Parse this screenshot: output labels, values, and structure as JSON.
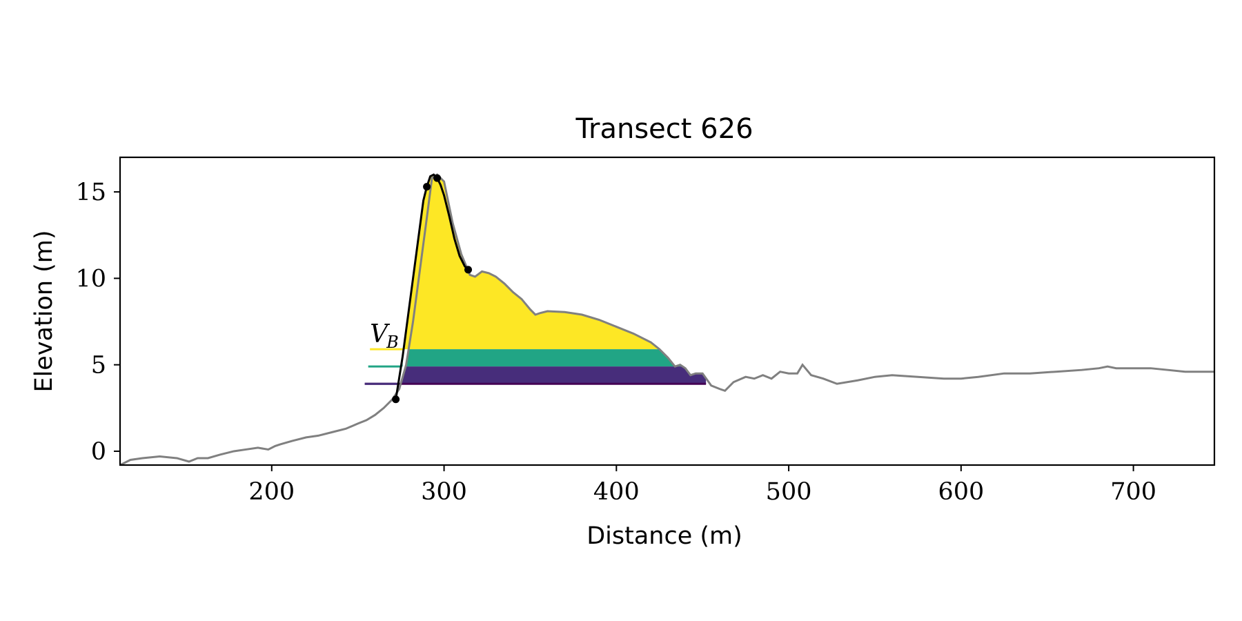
{
  "chart_data": {
    "type": "area",
    "title": "Transect 626",
    "xlabel": "Distance (m)",
    "ylabel": "Elevation (m)",
    "xlim": [
      112,
      747
    ],
    "ylim": [
      -0.8,
      17
    ],
    "xticks": [
      200,
      300,
      400,
      500,
      600,
      700
    ],
    "yticks": [
      0,
      5,
      10,
      15
    ],
    "grid": false,
    "legend": "none",
    "annotation": {
      "text": "V",
      "subscript": "B",
      "x": 257,
      "y": 6.3
    },
    "colors": {
      "profile": "#808080",
      "fit_line": "#000000",
      "layer_top": "#fde725",
      "layer_mid": "#21a585",
      "layer_low": "#472d7b",
      "layer_base": "#440154"
    },
    "profile": {
      "x": [
        112,
        118,
        125,
        135,
        145,
        152,
        157,
        163,
        170,
        178,
        185,
        192,
        198,
        202,
        205,
        212,
        220,
        227,
        235,
        243,
        250,
        255,
        260,
        265,
        270,
        274,
        278,
        282,
        286,
        290,
        293,
        296,
        300,
        305,
        310,
        315,
        318,
        322,
        326,
        330,
        335,
        340,
        345,
        350,
        353,
        356,
        360,
        370,
        380,
        390,
        400,
        410,
        420,
        425,
        430,
        434,
        437,
        440,
        443,
        446,
        450,
        455,
        460,
        463,
        468,
        475,
        480,
        485,
        490,
        495,
        500,
        505,
        508,
        513,
        520,
        528,
        540,
        550,
        560,
        575,
        590,
        600,
        610,
        625,
        640,
        655,
        670,
        680,
        685,
        690,
        700,
        710,
        720,
        730,
        747
      ],
      "y": [
        -0.8,
        -0.5,
        -0.4,
        -0.3,
        -0.4,
        -0.6,
        -0.4,
        -0.4,
        -0.2,
        0.0,
        0.1,
        0.2,
        0.1,
        0.3,
        0.4,
        0.6,
        0.8,
        0.9,
        1.1,
        1.3,
        1.6,
        1.8,
        2.1,
        2.5,
        3.0,
        3.6,
        5.0,
        7.5,
        10.5,
        13.5,
        15.8,
        16.0,
        15.6,
        13.2,
        11.4,
        10.2,
        10.1,
        10.4,
        10.3,
        10.1,
        9.7,
        9.2,
        8.8,
        8.2,
        7.9,
        8.0,
        8.1,
        8.05,
        7.9,
        7.6,
        7.2,
        6.8,
        6.3,
        5.9,
        5.4,
        4.9,
        5.0,
        4.8,
        4.4,
        4.5,
        4.5,
        3.8,
        3.6,
        3.5,
        4.0,
        4.3,
        4.2,
        4.4,
        4.2,
        4.6,
        4.5,
        4.5,
        5.0,
        4.4,
        4.2,
        3.9,
        4.1,
        4.3,
        4.4,
        4.3,
        4.2,
        4.2,
        4.3,
        4.5,
        4.5,
        4.6,
        4.7,
        4.8,
        4.9,
        4.8,
        4.8,
        4.8,
        4.7,
        4.6,
        4.6
      ]
    },
    "fit_line": {
      "x": [
        272,
        276,
        280,
        284,
        288,
        290,
        292,
        294,
        296,
        298,
        300,
        303,
        306,
        309,
        312,
        314
      ],
      "y": [
        3.0,
        5.5,
        8.5,
        11.5,
        14.5,
        15.3,
        15.9,
        16.0,
        15.8,
        15.4,
        14.8,
        13.6,
        12.3,
        11.3,
        10.7,
        10.5
      ]
    },
    "key_points": {
      "x": [
        272,
        290,
        296,
        314
      ],
      "y": [
        3.0,
        15.3,
        15.8,
        10.5
      ]
    },
    "layers": [
      {
        "name": "layer_top",
        "color_key": "layer_top",
        "y_low": 5.9,
        "y_high": 16.0,
        "legend_x_start": 257
      },
      {
        "name": "layer_mid",
        "color_key": "layer_mid",
        "y_low": 4.9,
        "y_high": 5.9,
        "legend_x_start": 256
      },
      {
        "name": "layer_low",
        "color_key": "layer_low",
        "y_low": 3.9,
        "y_high": 4.9,
        "legend_x_start": 254
      }
    ],
    "layer_x_end": 452
  }
}
